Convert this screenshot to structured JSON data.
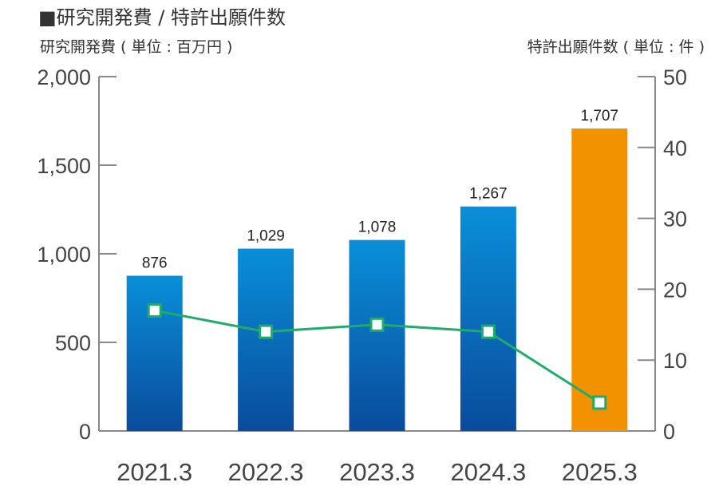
{
  "chart_data": {
    "type": "bar",
    "title": "■研究開発費 / 特許出願件数",
    "ylabel": "研究開発費 ( 単位 : 百万円 )",
    "y2label": "特許出願件数 ( 単位 : 件 )",
    "categories": [
      "2021.3",
      "2022.3",
      "2023.3",
      "2024.3",
      "2025.3"
    ],
    "series": [
      {
        "name": "研究開発費",
        "kind": "bar",
        "axis": "left",
        "values": [
          876,
          1029,
          1078,
          1267,
          1707
        ],
        "labels": [
          "876",
          "1,029",
          "1,078",
          "1,267",
          "1,707"
        ]
      },
      {
        "name": "特許出願件数",
        "kind": "line",
        "axis": "right",
        "values": [
          17,
          14,
          15,
          14,
          4
        ]
      }
    ],
    "ylim": [
      0,
      2000
    ],
    "yticks": [
      0,
      500,
      1000,
      1500,
      2000
    ],
    "ytick_labels": [
      "0",
      "500",
      "1,000",
      "1,500",
      "2,000"
    ],
    "y2lim": [
      0,
      50
    ],
    "y2ticks": [
      0,
      10,
      20,
      30,
      40,
      50
    ],
    "y2tick_labels": [
      "0",
      "10",
      "20",
      "30",
      "40",
      "50"
    ],
    "colors": {
      "bar_top": "#0a8fd8",
      "bar_bottom": "#0a4b9c",
      "highlight_bar": "#f39200",
      "line": "#1fac6b",
      "marker_fill": "#ffffff",
      "axis": "#888888"
    },
    "highlight_index": 4
  }
}
